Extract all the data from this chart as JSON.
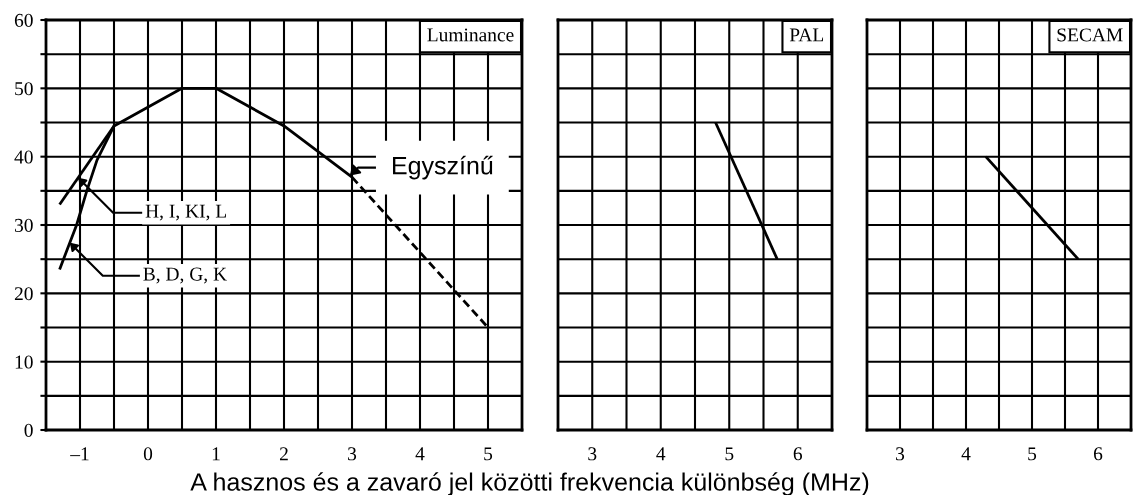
{
  "chart_data": [
    {
      "type": "line",
      "title": "Luminance",
      "xlabel": "A hasznos és a zavaró jel közötti frekvencia különbség (MHz)",
      "xlim": [
        -1.5,
        5.5
      ],
      "xticks": [
        {
          "value": -1,
          "label": "–1"
        },
        {
          "value": -0.5,
          "label": null
        },
        0,
        {
          "value": 0.5,
          "label": null
        },
        1,
        {
          "value": 1.5,
          "label": null
        },
        2,
        {
          "value": 2.5,
          "label": null
        },
        3,
        {
          "value": 3.5,
          "label": null
        },
        4,
        {
          "value": 4.5,
          "label": null
        },
        5
      ],
      "ylim": [
        0,
        60
      ],
      "yticks": [
        0,
        {
          "value": 5,
          "label": null
        },
        10,
        {
          "value": 15,
          "label": null
        },
        20,
        {
          "value": 25,
          "label": null
        },
        30,
        {
          "value": 35,
          "label": null
        },
        40,
        {
          "value": 45,
          "label": null
        },
        50,
        {
          "value": 55,
          "label": null
        },
        60
      ],
      "grid": true,
      "series": [
        {
          "name": "H, I, KI, L",
          "color": "#000000",
          "x": [
            -1.3,
            -0.5
          ],
          "values": [
            33,
            44.5
          ]
        },
        {
          "name": "B, D, G, K",
          "color": "#000000",
          "x": [
            -1.3,
            -1.05,
            -0.9,
            -0.75,
            -0.5
          ],
          "values": [
            23.5,
            30,
            35,
            39.5,
            44.5
          ]
        },
        {
          "name": "Egyszínű",
          "color": "#000000",
          "x": [
            -0.5,
            0.5,
            1,
            2,
            3
          ],
          "values": [
            44.5,
            50,
            50,
            44.5,
            37
          ]
        },
        {
          "color": "#000000",
          "x": [
            3,
            5
          ],
          "values": [
            37,
            15
          ],
          "line_style": "dashed"
        }
      ]
    },
    {
      "type": "line",
      "title": "PAL",
      "tick_labels": "x",
      "xlim": [
        2.5,
        6.5
      ],
      "xticks": [
        3,
        {
          "value": 3.5,
          "label": null
        },
        4,
        {
          "value": 4.5,
          "label": null
        },
        5,
        {
          "value": 5.5,
          "label": null
        },
        6
      ],
      "ylim": [
        0,
        60
      ],
      "yticks": [
        0,
        5,
        10,
        15,
        20,
        25,
        30,
        35,
        40,
        45,
        50,
        55,
        60
      ],
      "grid": true,
      "series": [
        {
          "color": "#000000",
          "x": [
            4.8,
            5.7
          ],
          "values": [
            45,
            25
          ]
        }
      ]
    },
    {
      "type": "line",
      "title": "SECAM",
      "tick_labels": "x",
      "xlim": [
        2.5,
        6.5
      ],
      "xticks": [
        3,
        {
          "value": 3.5,
          "label": null
        },
        4,
        {
          "value": 4.5,
          "label": null
        },
        5,
        {
          "value": 5.5,
          "label": null
        },
        6
      ],
      "ylim": [
        0,
        60
      ],
      "yticks": [
        0,
        5,
        10,
        15,
        20,
        25,
        30,
        35,
        40,
        45,
        50,
        55,
        60
      ],
      "grid": true,
      "series": [
        {
          "color": "#000000",
          "x": [
            4.3,
            5.7
          ],
          "values": [
            40,
            25
          ]
        }
      ]
    }
  ]
}
